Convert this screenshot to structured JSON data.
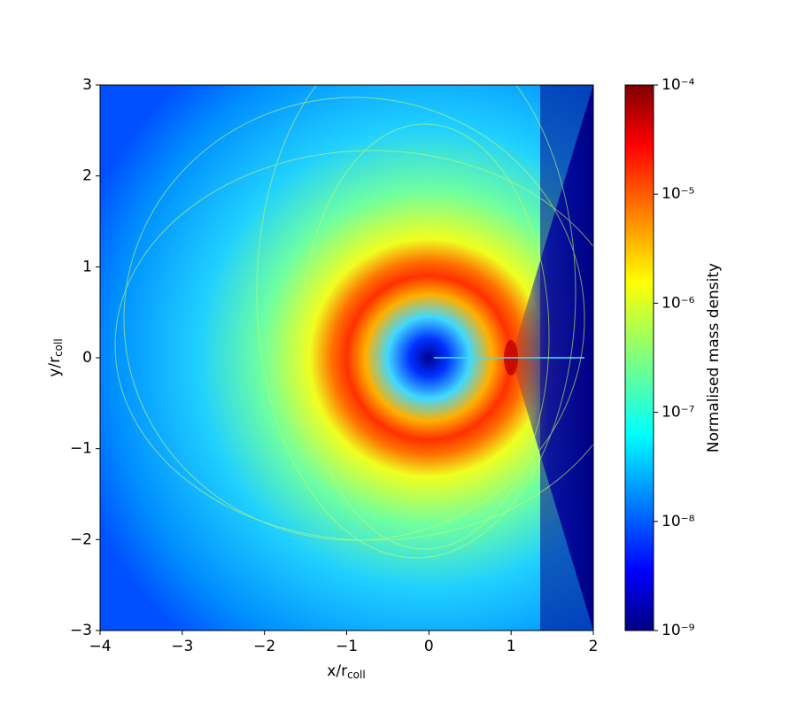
{
  "chart_data": {
    "type": "heatmap",
    "xlabel": {
      "text": "x/r",
      "subscript": "coll"
    },
    "ylabel": {
      "text": "y/r",
      "subscript": "coll"
    },
    "xlim": [
      -4,
      2
    ],
    "xticks": [
      {
        "value": -4,
        "label": "−4"
      },
      {
        "value": -3,
        "label": "−3"
      },
      {
        "value": -2,
        "label": "−2"
      },
      {
        "value": -1,
        "label": "−1"
      },
      0,
      1,
      2
    ],
    "ylim": [
      -3,
      3
    ],
    "yticks": [
      {
        "value": -3,
        "label": "−3"
      },
      {
        "value": -2,
        "label": "−2"
      },
      {
        "value": -1,
        "label": "−1"
      },
      0,
      1,
      2,
      3
    ],
    "colorbar": {
      "label": "Normalised mass density",
      "scale": "log",
      "lim": [
        1e-09,
        0.0001
      ],
      "ticks": [
        {
          "value": 1e-09,
          "label": "10⁻⁹"
        },
        {
          "value": 1e-08,
          "label": "10⁻⁸"
        },
        {
          "value": 1e-07,
          "label": "10⁻⁷"
        },
        {
          "value": 1e-06,
          "label": "10⁻⁶"
        },
        {
          "value": 1e-05,
          "label": "10⁻⁵"
        },
        {
          "value": 0.0001,
          "label": "10⁻⁴"
        }
      ],
      "colormap": "jet"
    }
  }
}
